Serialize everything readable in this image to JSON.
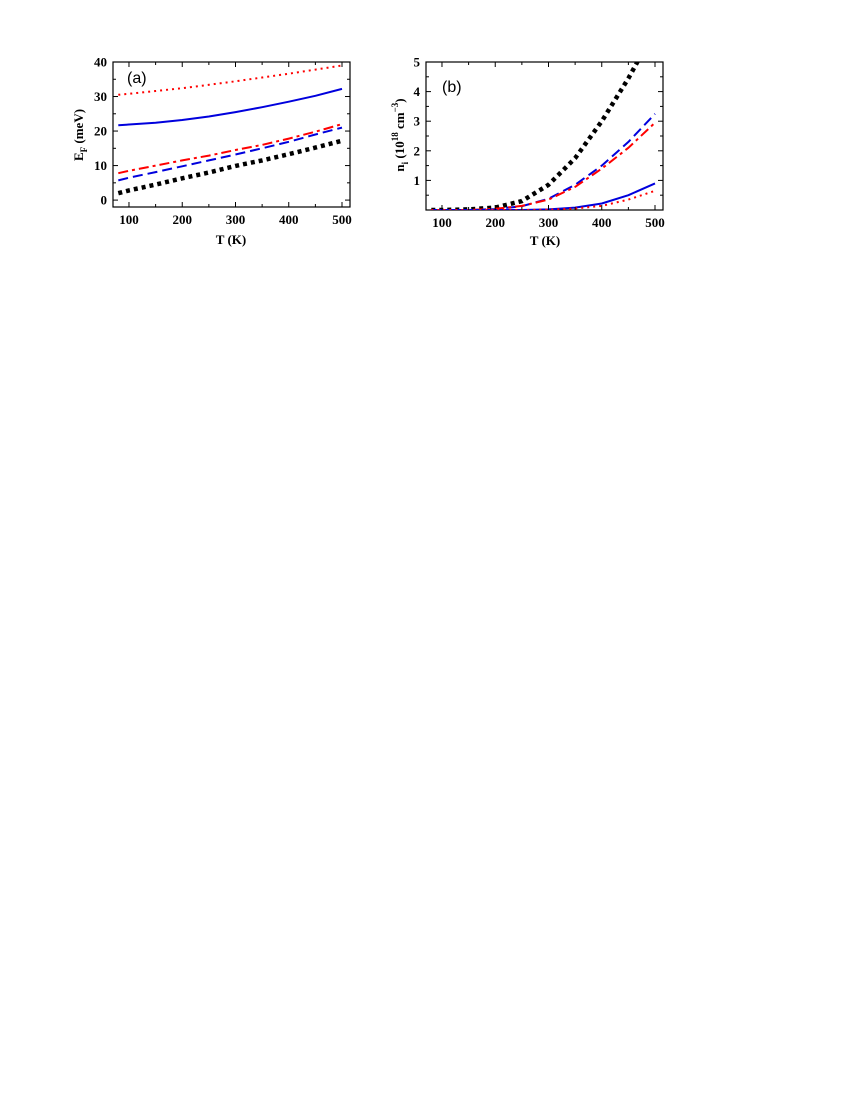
{
  "chart_data": [
    {
      "type": "line",
      "panel_label": "(a)",
      "xlabel": "T (K)",
      "ylabel": {
        "main": "E",
        "sub": "F",
        "rest": " (meV)"
      },
      "xlim": [
        70,
        515
      ],
      "ylim": [
        -2,
        40
      ],
      "xticks": [
        100,
        200,
        300,
        400,
        500
      ],
      "yticks": [
        0,
        10,
        20,
        30,
        40
      ],
      "grid": false,
      "series": [
        {
          "color": "#ff0000",
          "style": "dotted",
          "x": [
            80,
            100,
            150,
            200,
            250,
            300,
            350,
            400,
            450,
            500
          ],
          "y": [
            30.5,
            30.8,
            31.6,
            32.4,
            33.4,
            34.4,
            35.5,
            36.6,
            37.8,
            39.0
          ]
        },
        {
          "color": "#0000dd",
          "style": "solid",
          "x": [
            80,
            100,
            150,
            200,
            250,
            300,
            350,
            400,
            450,
            500
          ],
          "y": [
            21.7,
            21.9,
            22.4,
            23.2,
            24.2,
            25.5,
            26.9,
            28.5,
            30.2,
            32.2
          ]
        },
        {
          "color": "#ff0000",
          "style": "dashdot",
          "x": [
            80,
            100,
            150,
            200,
            250,
            300,
            350,
            400,
            450,
            500
          ],
          "y": [
            7.8,
            8.5,
            10.0,
            11.5,
            12.9,
            14.5,
            16.0,
            17.8,
            19.8,
            22.0
          ]
        },
        {
          "color": "#0000dd",
          "style": "dashed",
          "x": [
            80,
            100,
            150,
            200,
            250,
            300,
            350,
            400,
            450,
            500
          ],
          "y": [
            5.7,
            6.5,
            8.1,
            9.8,
            11.5,
            13.2,
            15.0,
            16.9,
            19.0,
            21.0
          ]
        },
        {
          "color": "#000000",
          "style": "thickdot",
          "x": [
            80,
            100,
            150,
            200,
            250,
            300,
            350,
            400,
            450,
            500
          ],
          "y": [
            2.0,
            2.8,
            4.5,
            6.3,
            8.0,
            9.9,
            11.5,
            13.3,
            15.2,
            17.2
          ]
        }
      ]
    },
    {
      "type": "line",
      "panel_label": "(b)",
      "xlabel": "T (K)",
      "ylabel": {
        "main": "n",
        "sub": "i",
        "mid": " (10",
        "sup1": "18",
        "mid2": " cm",
        "sup2": "−3",
        "rest": ")"
      },
      "xlim": [
        70,
        515
      ],
      "ylim": [
        0,
        5
      ],
      "xticks": [
        100,
        200,
        300,
        400,
        500
      ],
      "yticks": [
        1,
        2,
        3,
        4,
        5
      ],
      "grid": false,
      "series": [
        {
          "color": "#000000",
          "style": "thickdot",
          "x": [
            80,
            100,
            150,
            200,
            250,
            300,
            350,
            400,
            450,
            470
          ],
          "y": [
            0.0,
            0.0,
            0.02,
            0.08,
            0.3,
            0.85,
            1.75,
            3.0,
            4.45,
            5.1
          ]
        },
        {
          "color": "#0000dd",
          "style": "dashed",
          "x": [
            80,
            150,
            200,
            250,
            300,
            350,
            400,
            450,
            500
          ],
          "y": [
            0.0,
            0.0,
            0.03,
            0.13,
            0.38,
            0.85,
            1.5,
            2.3,
            3.25
          ]
        },
        {
          "color": "#ff0000",
          "style": "dashdot",
          "x": [
            80,
            150,
            200,
            250,
            300,
            350,
            400,
            450,
            500
          ],
          "y": [
            0.0,
            0.0,
            0.04,
            0.14,
            0.35,
            0.78,
            1.4,
            2.1,
            2.95
          ]
        },
        {
          "color": "#0000dd",
          "style": "solid",
          "x": [
            80,
            250,
            300,
            350,
            400,
            450,
            500
          ],
          "y": [
            0.0,
            0.0,
            0.02,
            0.08,
            0.22,
            0.5,
            0.9
          ]
        },
        {
          "color": "#ff0000",
          "style": "dotted",
          "x": [
            80,
            250,
            300,
            350,
            400,
            450,
            500
          ],
          "y": [
            0.0,
            0.0,
            0.01,
            0.05,
            0.14,
            0.35,
            0.65
          ]
        }
      ]
    }
  ]
}
